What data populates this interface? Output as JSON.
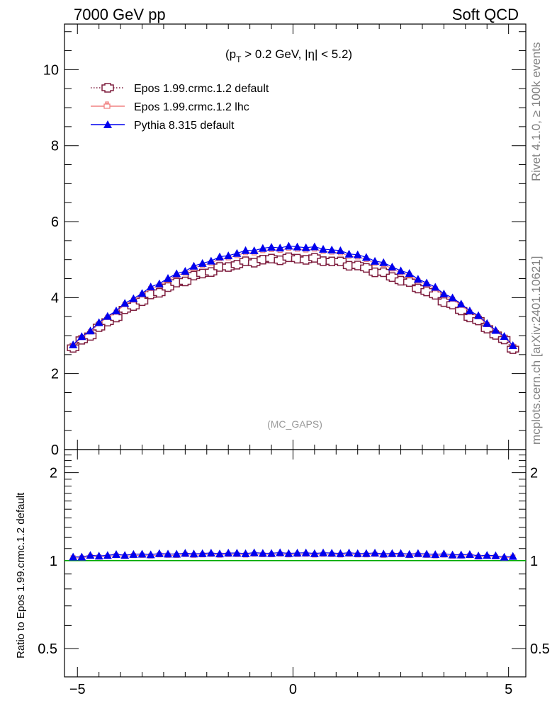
{
  "header": {
    "left_title": "7000 GeV pp",
    "right_title": "Soft QCD"
  },
  "side_labels": {
    "rivet": "Rivet 4.1.0, ≥ 100k events",
    "mcplots": "mcplots.cern.ch [arXiv:2401.10621]"
  },
  "chart_data": {
    "type": "line",
    "title": "(pT > 0.2 GeV, |η| < 5.2)",
    "title_parts": {
      "open": "(p",
      "sub": "T",
      "rest": " > 0.2 GeV, |η| < 5.2)"
    },
    "watermark": "(MC_GAPS)",
    "xlabel": "",
    "ylabel": "",
    "xlim": [
      -5.3,
      5.4
    ],
    "ylim": [
      0,
      11.2
    ],
    "x_ticks": [
      -5,
      0,
      5
    ],
    "x_tick_labels": [
      "−5",
      "0",
      "5"
    ],
    "y_ticks": [
      0,
      2,
      4,
      6,
      8,
      10
    ],
    "y_tick_labels": [
      "0",
      "2",
      "4",
      "6",
      "8",
      "10"
    ],
    "legend_position": "top-left",
    "series": [
      {
        "name": "Epos 1.99.crmc.1.2 default",
        "color": "#7f1f3f",
        "line": "dotted",
        "marker": "open-cross",
        "peak": 5.03,
        "edge": 2.68,
        "edge_x": 5.1
      },
      {
        "name": "Epos 1.99.crmc.1.2 lhc",
        "color": "#f08080",
        "line": "solid",
        "marker": "small-cross",
        "peak": 5.28,
        "edge": 2.74,
        "edge_x": 5.1
      },
      {
        "name": "Pythia 8.315 default",
        "color": "#0000ee",
        "line": "solid",
        "marker": "filled-triangle",
        "peak": 5.34,
        "edge": 2.76,
        "edge_x": 5.1
      }
    ],
    "ratio": {
      "ylabel": "Ratio to Epos 1.99.crmc.1.2 default",
      "ylim": [
        0.4,
        2.4
      ],
      "y_ticks": [
        0.5,
        1,
        2
      ],
      "y_tick_labels": [
        "0.5",
        "1",
        "2"
      ],
      "reference_line": 1,
      "reference_color": "#00aa00",
      "lhc_ratio_mean": 1.05,
      "pythia_ratio_mean": 1.06
    }
  }
}
